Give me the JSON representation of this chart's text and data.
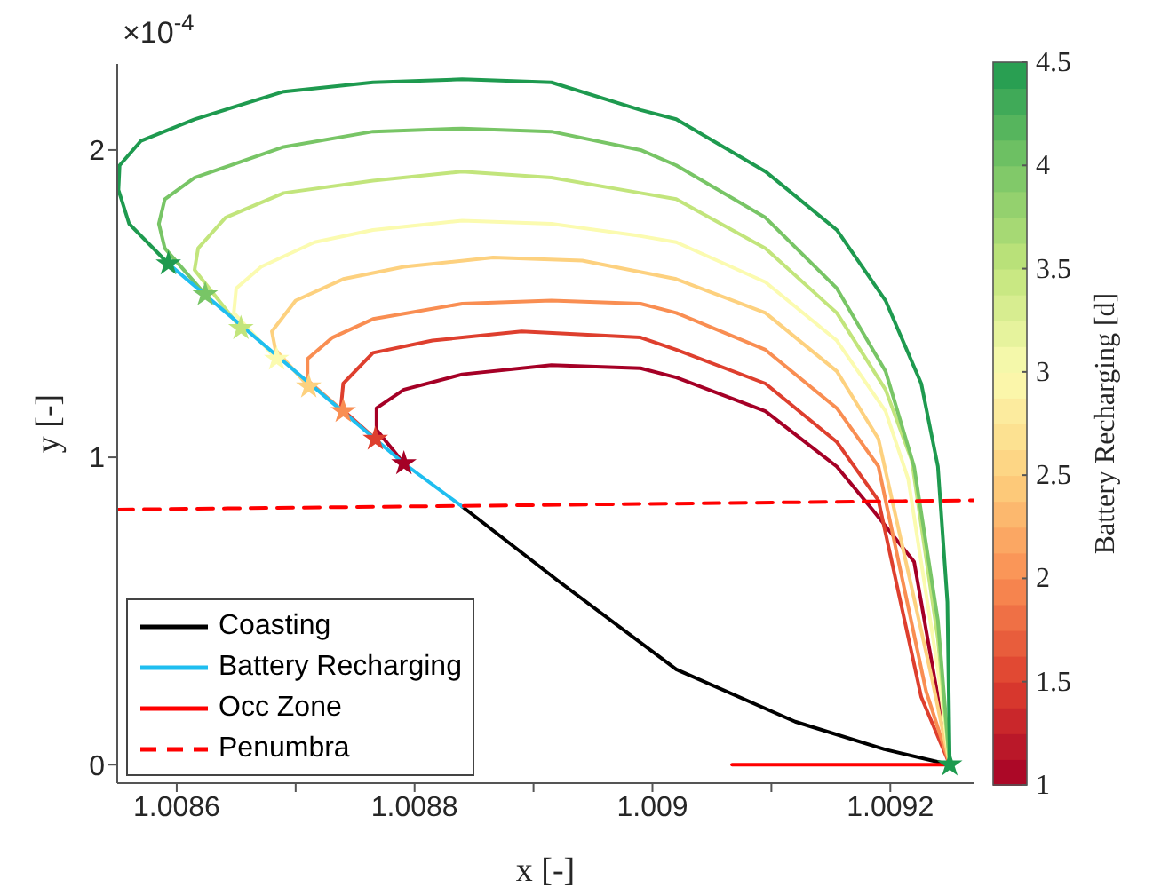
{
  "chart_data": {
    "type": "line",
    "xlabel": "x [-]",
    "ylabel": "y [-]",
    "clabel": "Battery Recharging [d]",
    "annotations": [
      "×10$^{-4}$"
    ],
    "xlim": [
      1.00855,
      1.00927
    ],
    "xticks": [
      1.0086,
      {
        "value": 1.0087,
        "label": null
      },
      1.0088,
      {
        "value": 1.0089,
        "label": null
      },
      1.009,
      {
        "value": 1.0091,
        "label": null
      },
      1.0092
    ],
    "ylim": [
      -0.06,
      2.28
    ],
    "yticks": [
      0,
      1,
      2
    ],
    "clim": [
      1,
      4.5
    ],
    "cticks": [
      1,
      1.5,
      2,
      2.5,
      3,
      3.5,
      4,
      4.5
    ],
    "legend": "bottom left",
    "marker": "none",
    "series": [
      {
        "color": "#a50026",
        "x": [
          1.008791,
          1.008768,
          1.008768,
          1.008791,
          1.00884,
          1.008915,
          1.00899,
          1.00902,
          1.009095,
          1.009155,
          1.009185,
          1.00922,
          1.00925
        ],
        "values": [
          0.98,
          1.09,
          1.16,
          1.22,
          1.27,
          1.3,
          1.29,
          1.26,
          1.15,
          0.97,
          0.83,
          0.66,
          0
        ]
      },
      {
        "color": "#de3f2e",
        "x": [
          1.008767,
          1.008738,
          1.00874,
          1.008765,
          1.008815,
          1.00889,
          1.00899,
          1.00902,
          1.009095,
          1.009155,
          1.00919,
          1.009226,
          1.00925
        ],
        "values": [
          1.06,
          1.16,
          1.24,
          1.34,
          1.38,
          1.41,
          1.39,
          1.35,
          1.24,
          1.05,
          0.86,
          0.22,
          0
        ]
      },
      {
        "color": "#f98e52",
        "x": [
          1.00874,
          1.00871,
          1.00871,
          1.008731,
          1.008765,
          1.00884,
          1.008915,
          1.00899,
          1.00902,
          1.009095,
          1.009155,
          1.00919,
          1.00923,
          1.00925
        ],
        "values": [
          1.15,
          1.25,
          1.32,
          1.39,
          1.45,
          1.5,
          1.51,
          1.5,
          1.47,
          1.35,
          1.16,
          0.97,
          0.24,
          0
        ]
      },
      {
        "color": "#fdd17f",
        "x": [
          1.008711,
          1.008683,
          1.00868,
          1.0087,
          1.00874,
          1.008791,
          1.008866,
          1.008941,
          1.00902,
          1.009095,
          1.009155,
          1.00919,
          1.009235,
          1.00925
        ],
        "values": [
          1.23,
          1.35,
          1.41,
          1.51,
          1.58,
          1.62,
          1.65,
          1.64,
          1.58,
          1.47,
          1.28,
          1.06,
          0.28,
          0
        ]
      },
      {
        "color": "#fbfbb0",
        "x": [
          1.008684,
          1.008648,
          1.00865,
          1.008671,
          1.008716,
          1.008765,
          1.00884,
          1.008915,
          1.00899,
          1.00902,
          1.009095,
          1.009155,
          1.009196,
          1.009215,
          1.00924,
          1.00925
        ],
        "values": [
          1.32,
          1.47,
          1.55,
          1.62,
          1.7,
          1.74,
          1.77,
          1.76,
          1.72,
          1.7,
          1.57,
          1.38,
          1.15,
          0.93,
          0.31,
          0
        ]
      },
      {
        "color": "#c2e57c",
        "x": [
          1.008654,
          1.008615,
          1.008618,
          1.008641,
          1.00869,
          1.008765,
          1.00884,
          1.008915,
          1.00899,
          1.00902,
          1.009095,
          1.009155,
          1.009196,
          1.009218,
          1.00924,
          1.00925
        ],
        "values": [
          1.42,
          1.61,
          1.68,
          1.78,
          1.86,
          1.9,
          1.93,
          1.91,
          1.86,
          1.84,
          1.68,
          1.47,
          1.22,
          0.99,
          0.41,
          0
        ]
      },
      {
        "color": "#78c566",
        "x": [
          1.008624,
          1.00859,
          1.008585,
          1.00859,
          1.008615,
          1.00869,
          1.008765,
          1.00884,
          1.008915,
          1.00899,
          1.00902,
          1.009095,
          1.009155,
          1.009196,
          1.00922,
          1.00924,
          1.00925
        ],
        "values": [
          1.53,
          1.68,
          1.76,
          1.84,
          1.91,
          2.01,
          2.06,
          2.07,
          2.06,
          2,
          1.95,
          1.78,
          1.55,
          1.28,
          0.97,
          0.47,
          0
        ]
      },
      {
        "color": "#1e9a4f",
        "x": [
          1.008593,
          1.00856,
          1.008551,
          1.008552,
          1.00857,
          1.008615,
          1.00869,
          1.008765,
          1.00884,
          1.008915,
          1.00899,
          1.00902,
          1.009095,
          1.009155,
          1.009196,
          1.009226,
          1.00924,
          1.009248,
          1.00925
        ],
        "values": [
          1.63,
          1.76,
          1.87,
          1.95,
          2.03,
          2.1,
          2.19,
          2.22,
          2.23,
          2.22,
          2.13,
          2.1,
          1.93,
          1.74,
          1.51,
          1.24,
          0.97,
          0.53,
          0
        ]
      },
      {
        "name": "Coasting",
        "color": "#000000",
        "x": [
          1.00884,
          1.00892,
          1.00902,
          1.00912,
          1.009195,
          1.00925
        ],
        "values": [
          0.84,
          0.6,
          0.31,
          0.14,
          0.05,
          0
        ]
      },
      {
        "name": "Battery Recharging",
        "color": "#1fbef0",
        "x": [
          1.008593,
          1.008791,
          1.00884
        ],
        "values": [
          1.63,
          0.98,
          0.84
        ]
      },
      {
        "name": "Occ Zone",
        "color": "#ff0000",
        "x": [
          1.009067,
          1.00925
        ],
        "values": [
          0,
          0
        ]
      },
      {
        "name": "Penumbra",
        "color": "#ff0000",
        "line_style": "dashed",
        "x": [
          1.00855,
          1.00927
        ],
        "values": [
          0.83,
          0.86
        ]
      },
      {
        "type": "scatter",
        "marker": "star",
        "x": [
          1.008593,
          1.008624,
          1.008654,
          1.008684,
          1.008711,
          1.00874,
          1.008767,
          1.008791,
          1.00925
        ],
        "values": [
          1.63,
          1.53,
          1.42,
          1.32,
          1.23,
          1.15,
          1.06,
          0.98,
          0
        ],
        "colors": [
          "#1e9a4f",
          "#78c566",
          "#c2e57c",
          "#fbfbb0",
          "#fdd17f",
          "#f98e52",
          "#de3f2e",
          "#a50026",
          "#1e9a4f"
        ]
      }
    ]
  }
}
